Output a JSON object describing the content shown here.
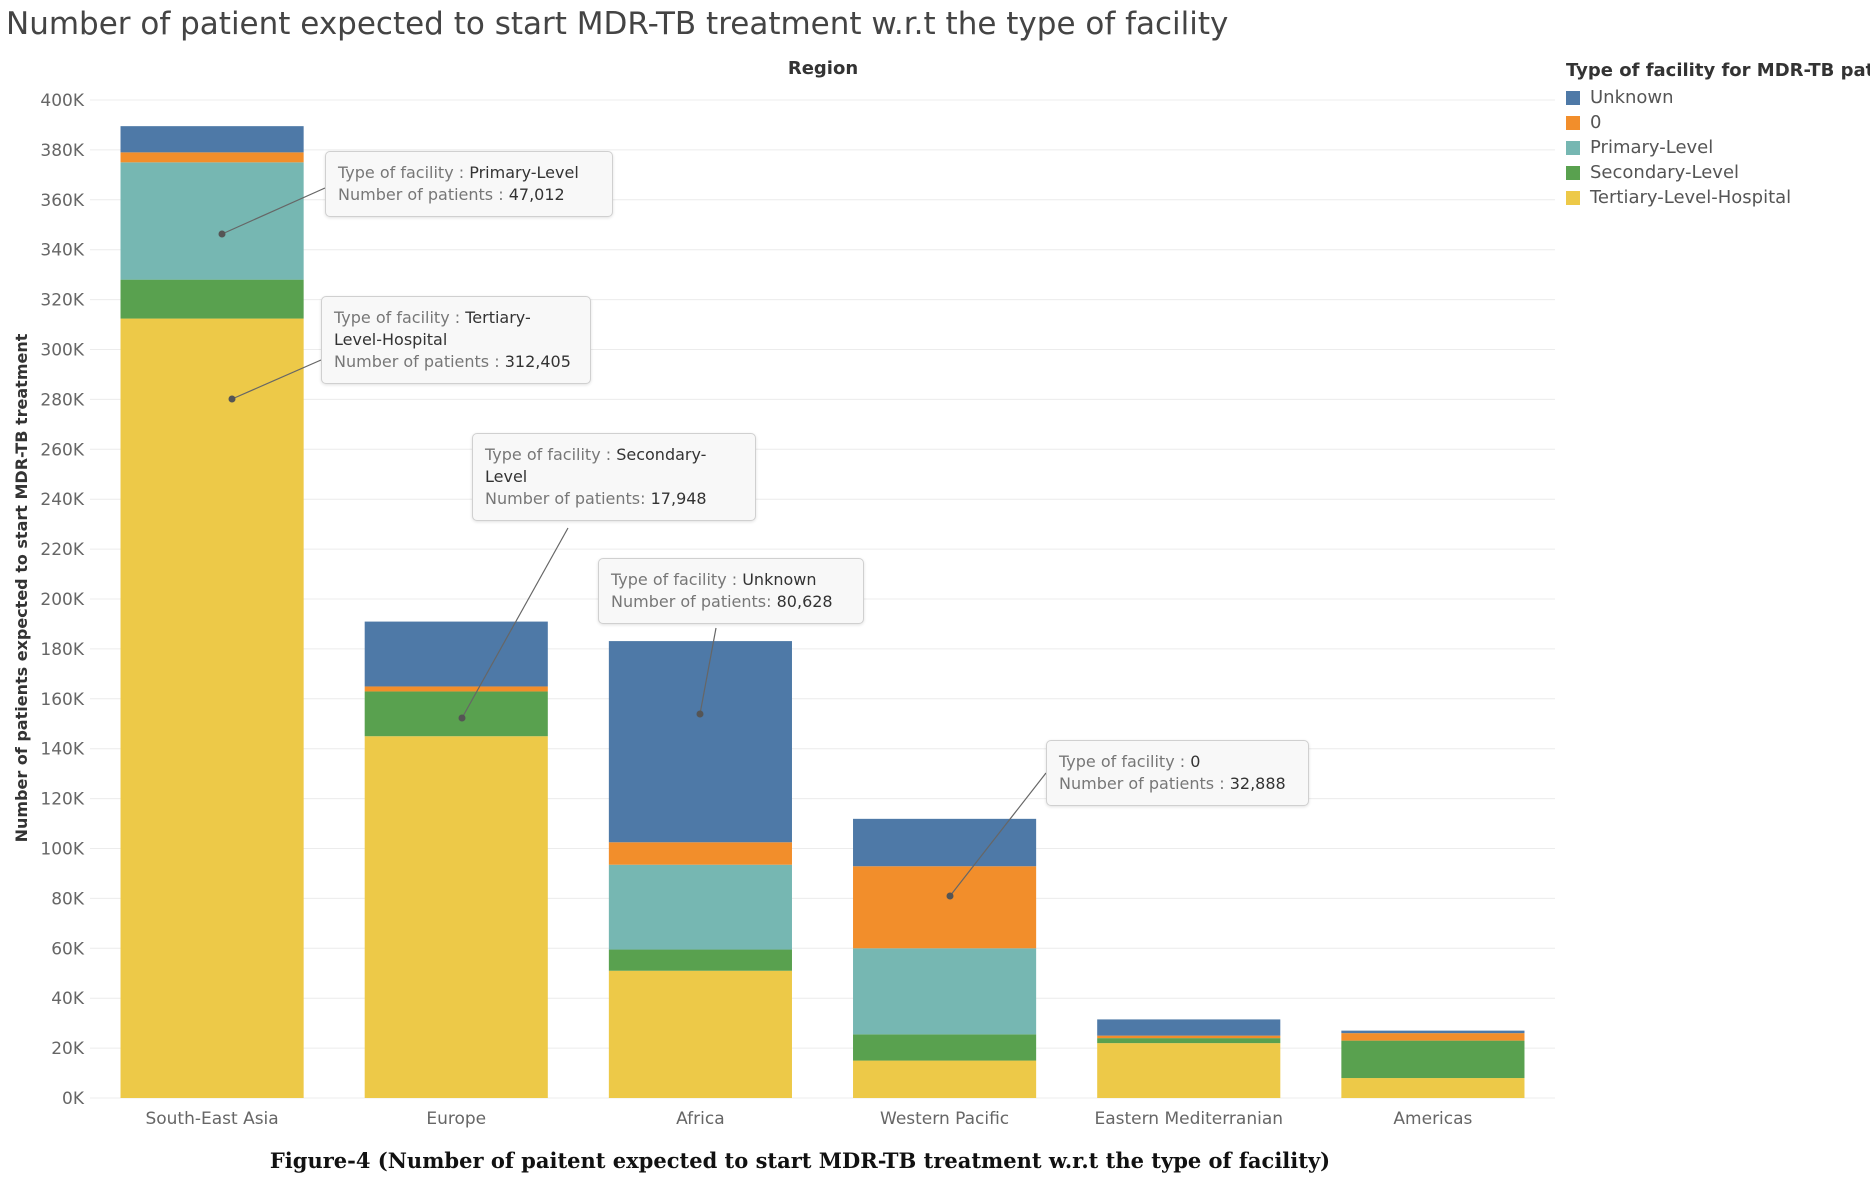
{
  "title": "Number of patient expected to start MDR-TB treatment w.r.t the type of facility",
  "caption": "Figure-4 (Number of paitent expected to start MDR-TB treatment w.r.t the type of facility)",
  "colors": {
    "Unknown": "#4e79a7",
    "0": "#f28e2b",
    "Primary-Level": "#76b7b2",
    "Secondary-Level": "#59a14f",
    "Tertiary-Level-Hospital": "#edc948"
  },
  "chart_data": {
    "type": "bar",
    "stacked": true,
    "xlabel": "Region",
    "ylabel": "Number of patients expected to start MDR-TB treatment",
    "ylim": [
      0,
      400000
    ],
    "yticks": [
      "0K",
      "20K",
      "40K",
      "60K",
      "80K",
      "100K",
      "120K",
      "140K",
      "160K",
      "180K",
      "200K",
      "220K",
      "240K",
      "260K",
      "280K",
      "300K",
      "320K",
      "340K",
      "360K",
      "380K",
      "400K"
    ],
    "categories": [
      "South-East Asia",
      "Europe",
      "Africa",
      "Western Pacific",
      "Eastern Mediterranian",
      "Americas"
    ],
    "legend_title": "Type of facility for MDR-TB patients",
    "legend_position": "top-right",
    "series": [
      {
        "name": "Tertiary-Level-Hospital",
        "values": [
          312405,
          145000,
          51000,
          15000,
          22000,
          8000
        ]
      },
      {
        "name": "Secondary-Level",
        "values": [
          15600,
          17948,
          8500,
          10500,
          2000,
          15000
        ]
      },
      {
        "name": "Primary-Level",
        "values": [
          47012,
          0,
          34000,
          34500,
          0,
          0
        ]
      },
      {
        "name": "0",
        "values": [
          4000,
          2000,
          9000,
          32888,
          1000,
          3000
        ]
      },
      {
        "name": "Unknown",
        "values": [
          10500,
          26000,
          80628,
          19000,
          6500,
          1000
        ]
      }
    ],
    "annotations": [
      {
        "facility_label": "Type of facility :",
        "facility": "Primary-Level",
        "patients_label": "Number of patients :",
        "patients": "47,012"
      },
      {
        "facility_label": "Type of facility :",
        "facility": "Tertiary-Level-Hospital",
        "patients_label": "Number of patients :",
        "patients": "312,405"
      },
      {
        "facility_label": "Type of facility :",
        "facility": "Secondary-Level",
        "patients_label": "Number of patients:",
        "patients": "17,948"
      },
      {
        "facility_label": "Type of facility :",
        "facility": "Unknown",
        "patients_label": "Number of patients:",
        "patients": "80,628"
      },
      {
        "facility_label": "Type of facility :",
        "facility": "0",
        "patients_label": "Number of patients :",
        "patients": "32,888"
      }
    ]
  }
}
